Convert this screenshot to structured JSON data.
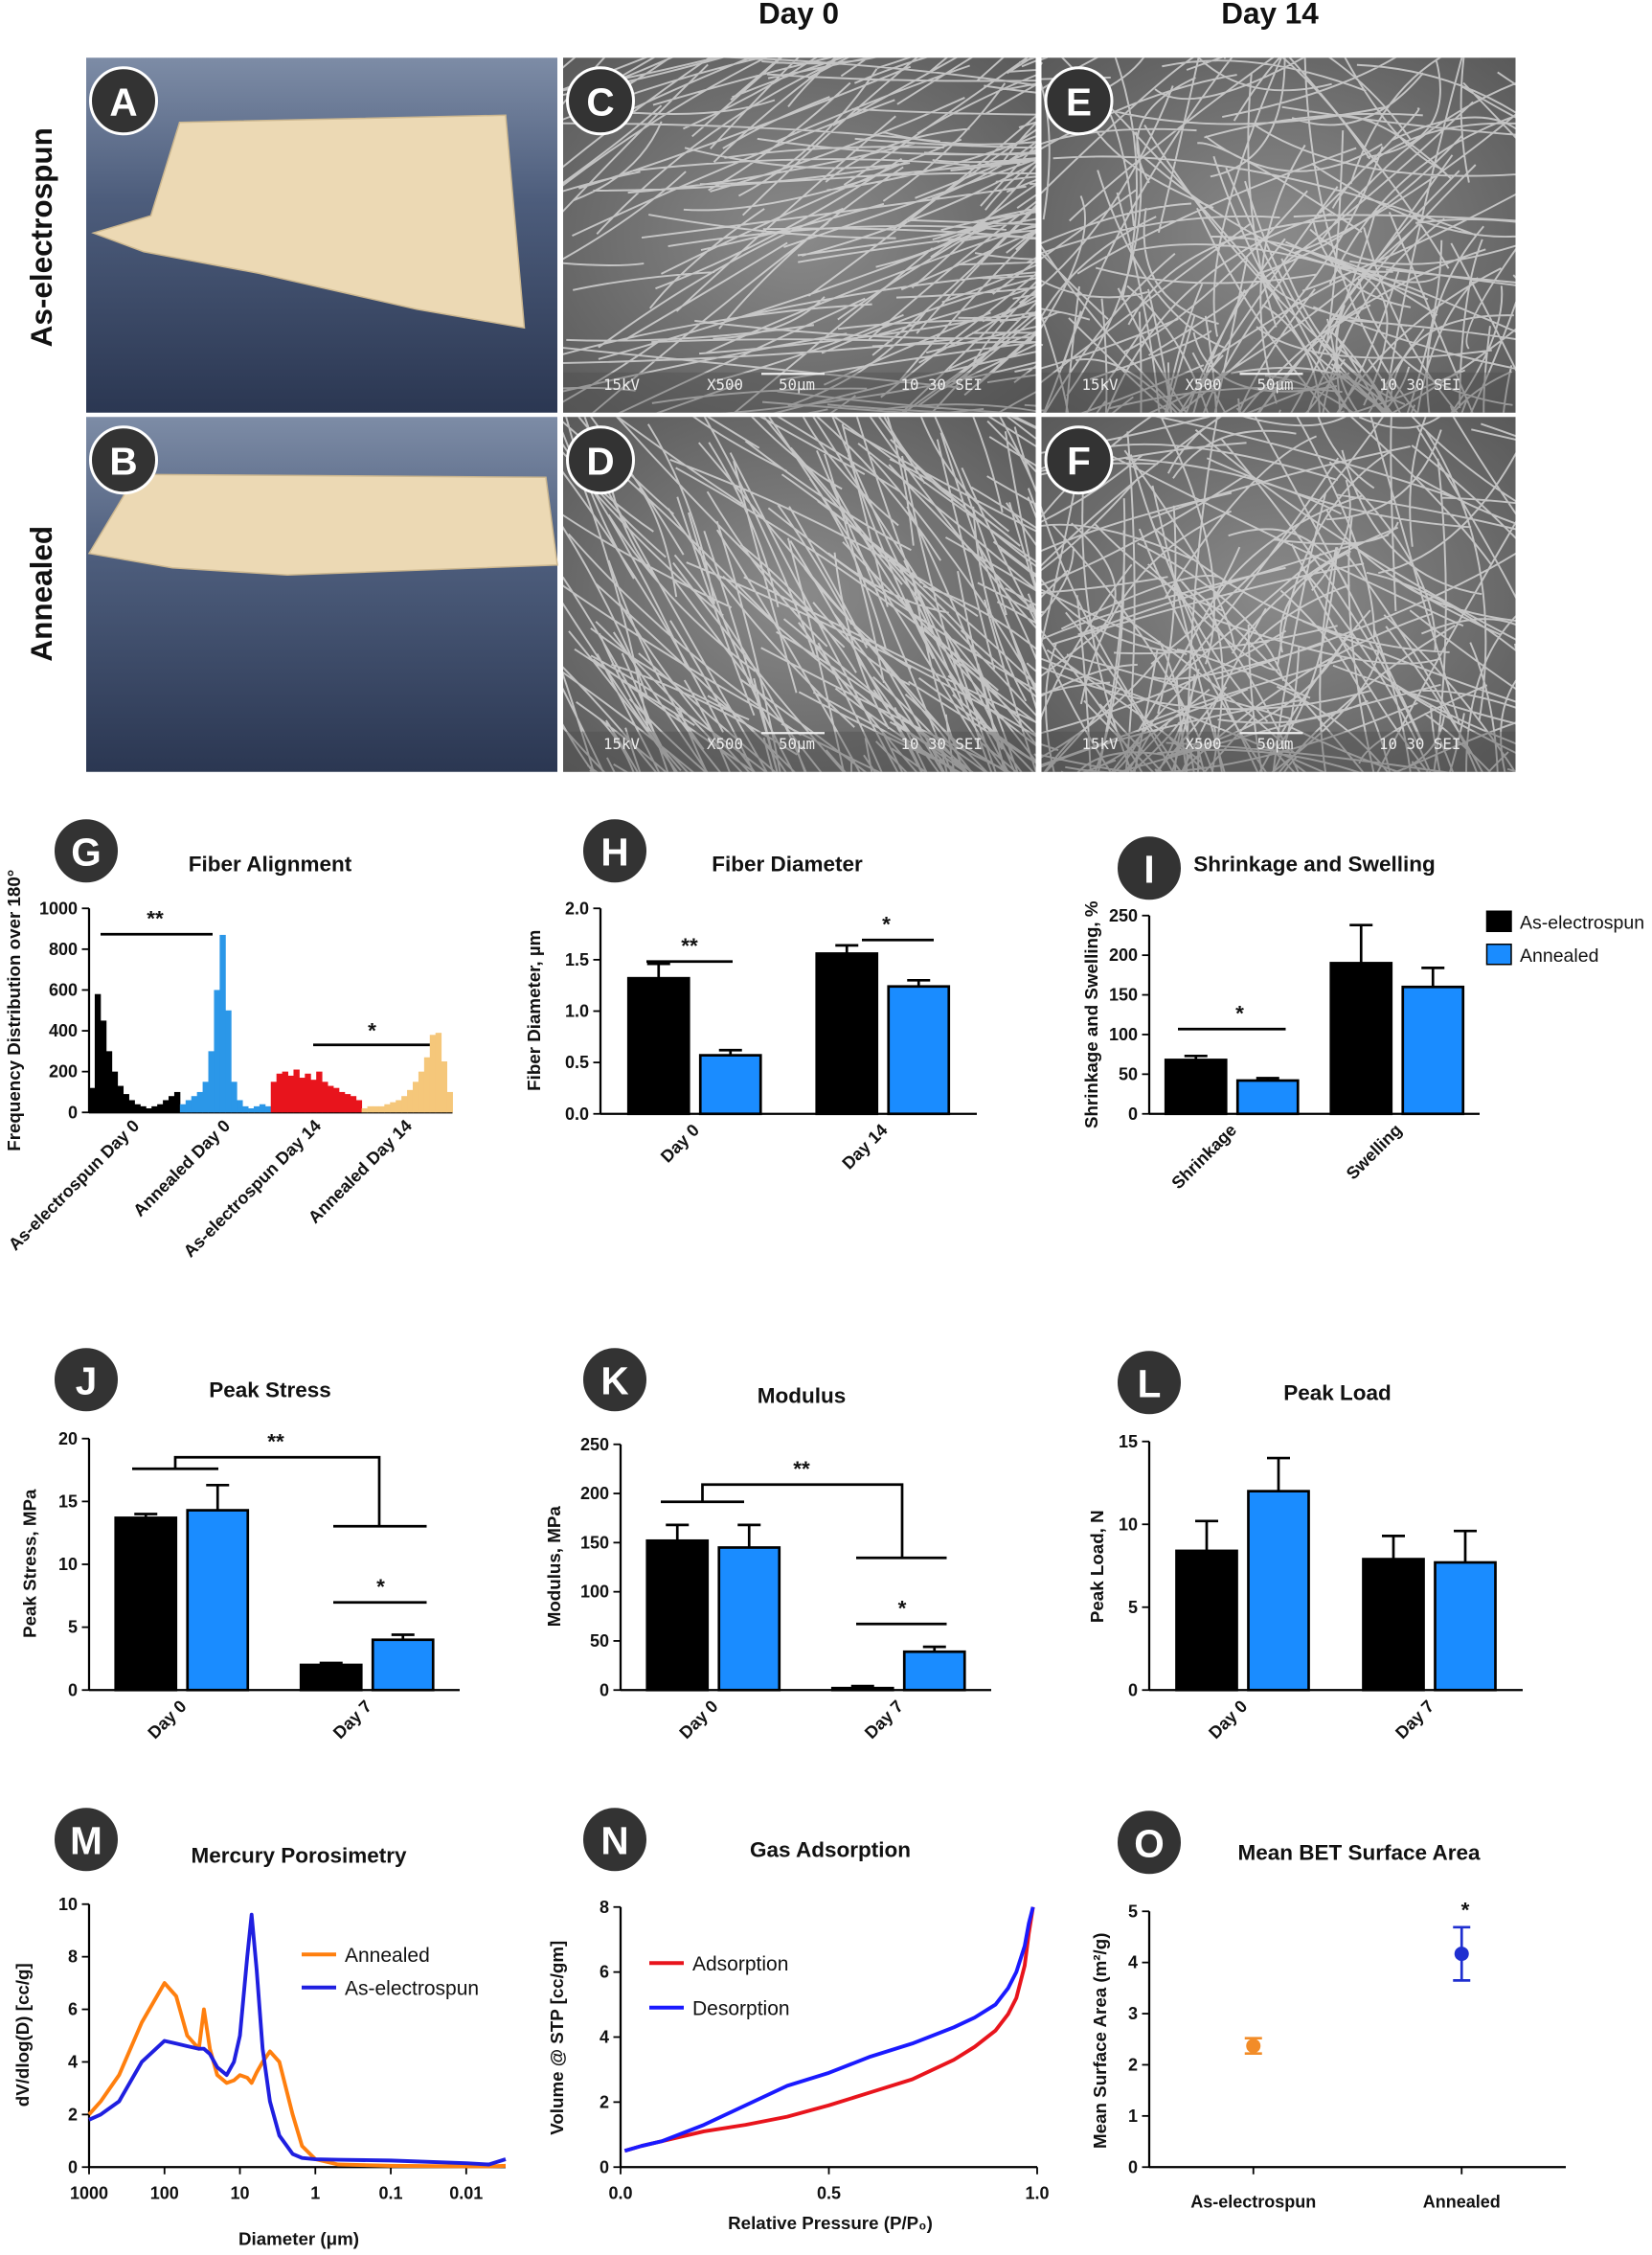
{
  "header": {
    "columns": [
      "Day 0",
      "Day 14"
    ],
    "rows": [
      "As-electrospun",
      "Annealed"
    ]
  },
  "photos": [
    {
      "panel": "A"
    },
    {
      "panel": "B"
    },
    {
      "panel": "C",
      "sem": [
        "15kV",
        "X500",
        "50μm",
        "10 30 SEI"
      ]
    },
    {
      "panel": "D",
      "sem": [
        "15kV",
        "X500",
        "50μm",
        "10 30 SEI"
      ]
    },
    {
      "panel": "E",
      "sem": [
        "15kV",
        "X500",
        "50μm",
        "10 30 SEI"
      ]
    },
    {
      "panel": "F",
      "sem": [
        "15kV",
        "X500",
        "50μm",
        "10 30 SEI"
      ]
    }
  ],
  "chart_data": [
    {
      "type": "histogram_groups",
      "panel": "G",
      "title": "Fiber Alignment",
      "y_label": "Frequency Distribution over 180°",
      "ylim": [
        0,
        1000
      ],
      "yticks": [
        0,
        200,
        400,
        600,
        800,
        1000
      ],
      "series": [
        {
          "name": "As-electrospun Day 0",
          "color": "#000000",
          "values": [
            120,
            580,
            450,
            300,
            200,
            130,
            90,
            60,
            40,
            30,
            20,
            30,
            40,
            60,
            80,
            100
          ]
        },
        {
          "name": "Annealed Day 0",
          "color": "#2b97e8",
          "values": [
            40,
            60,
            80,
            100,
            150,
            300,
            600,
            870,
            500,
            150,
            60,
            30,
            20,
            30,
            40,
            30
          ]
        },
        {
          "name": "As-electrospun Day 14",
          "color": "#e8141c",
          "values": [
            150,
            190,
            200,
            180,
            210,
            170,
            190,
            160,
            200,
            150,
            130,
            120,
            100,
            90,
            80,
            60
          ]
        },
        {
          "name": "Annealed Day 14",
          "color": "#f5c77a",
          "values": [
            20,
            30,
            30,
            30,
            40,
            50,
            60,
            80,
            110,
            150,
            200,
            270,
            380,
            390,
            250,
            100
          ]
        }
      ],
      "annotations": [
        "**",
        "*"
      ]
    },
    {
      "type": "bar",
      "panel": "H",
      "title": "Fiber Diameter",
      "y_label": "Fiber Diameter, µm",
      "categories": [
        "Day 0",
        "Day 14"
      ],
      "ylim": [
        0,
        2
      ],
      "yticks": [
        {
          "value": 0,
          "label": "0.0"
        },
        0.5,
        {
          "value": 1,
          "label": "1.0"
        },
        1.5,
        {
          "value": 2,
          "label": "2.0"
        }
      ],
      "series": [
        {
          "name": "As-electrospun",
          "color": "#000000",
          "values": [
            1.32,
            1.56
          ],
          "errors": [
            0.14,
            0.08
          ]
        },
        {
          "name": "Annealed",
          "color": "#1a8cff",
          "values": [
            0.57,
            1.24
          ],
          "errors": [
            0.05,
            0.06
          ]
        }
      ],
      "annotations": [
        "**",
        "*"
      ],
      "legend": false
    },
    {
      "type": "bar",
      "panel": "I",
      "title": "Shrinkage and Swelling",
      "y_label": "Shrinkage and Swelling, %",
      "categories": [
        "Shrinkage",
        "Swelling"
      ],
      "ylim": [
        0,
        250
      ],
      "yticks": [
        0,
        50,
        100,
        150,
        200,
        250
      ],
      "series": [
        {
          "name": "As-electrospun",
          "color": "#000000",
          "values": [
            68,
            190
          ],
          "errors": [
            5,
            48
          ]
        },
        {
          "name": "Annealed",
          "color": "#1a8cff",
          "values": [
            42,
            160
          ],
          "errors": [
            3,
            24
          ]
        }
      ],
      "annotations": [
        "*"
      ],
      "legend": true
    },
    {
      "type": "bar",
      "panel": "J",
      "title": "Peak Stress",
      "y_label": "Peak Stress, MPa",
      "categories": [
        "Day 0",
        "Day 7"
      ],
      "ylim": [
        0,
        20
      ],
      "yticks": [
        0,
        5,
        10,
        15,
        20
      ],
      "series": [
        {
          "name": "As-electrospun",
          "color": "#000000",
          "values": [
            13.7,
            2.0
          ],
          "errors": [
            0.3,
            0.15
          ]
        },
        {
          "name": "Annealed",
          "color": "#1a8cff",
          "values": [
            14.3,
            4.0
          ],
          "errors": [
            2.0,
            0.4
          ]
        }
      ],
      "annotations": [
        "**",
        "*"
      ],
      "legend": false
    },
    {
      "type": "bar",
      "panel": "K",
      "title": "Modulus",
      "y_label": "Modulus, MPa",
      "categories": [
        "Day 0",
        "Day 7"
      ],
      "ylim": [
        0,
        250
      ],
      "yticks": [
        0,
        50,
        100,
        150,
        200,
        250
      ],
      "series": [
        {
          "name": "As-electrospun",
          "color": "#000000",
          "values": [
            152,
            2
          ],
          "errors": [
            16,
            2
          ]
        },
        {
          "name": "Annealed",
          "color": "#1a8cff",
          "values": [
            145,
            39
          ],
          "errors": [
            23,
            5
          ]
        }
      ],
      "annotations": [
        "**",
        "*"
      ],
      "legend": false
    },
    {
      "type": "bar",
      "panel": "L",
      "title": "Peak Load",
      "y_label": "Peak Load, N",
      "categories": [
        "Day 0",
        "Day 7"
      ],
      "ylim": [
        0,
        15
      ],
      "yticks": [
        0,
        5,
        10,
        15
      ],
      "series": [
        {
          "name": "As-electrospun",
          "color": "#000000",
          "values": [
            8.4,
            7.9
          ],
          "errors": [
            1.8,
            1.4
          ]
        },
        {
          "name": "Annealed",
          "color": "#1a8cff",
          "values": [
            12.0,
            7.7
          ],
          "errors": [
            2.0,
            1.9
          ]
        }
      ],
      "legend": false
    },
    {
      "type": "line",
      "panel": "M",
      "title": "Mercury Porosimetry",
      "y_label": "dV/dlog(D) [cc/g]",
      "x_label": "Diameter (μm)",
      "xscale": "log",
      "xlim": [
        1000,
        0.003
      ],
      "xticks": [
        1000,
        100,
        10,
        1,
        0.1,
        0.01
      ],
      "ylim": [
        0,
        10
      ],
      "yticks": [
        0,
        2,
        4,
        6,
        8,
        10
      ],
      "x": [
        1000,
        700,
        400,
        200,
        100,
        70,
        50,
        35,
        30,
        25,
        20,
        15,
        12,
        10,
        8,
        7,
        6,
        5,
        4,
        3,
        2,
        1.5,
        1,
        0.5,
        0.1,
        0.01,
        0.005,
        0.003
      ],
      "series": [
        {
          "name": "Annealed",
          "color": "#ff7f0e",
          "values": [
            2.0,
            2.5,
            3.5,
            5.5,
            7.0,
            6.5,
            5.0,
            4.5,
            6.0,
            4.5,
            3.5,
            3.2,
            3.3,
            3.5,
            3.4,
            3.2,
            3.6,
            4.0,
            4.4,
            4.0,
            2.0,
            0.8,
            0.3,
            0.1,
            0.05,
            0.03,
            0.03,
            0.05
          ]
        },
        {
          "name": "As-electrospun",
          "color": "#1f1fe0",
          "values": [
            1.8,
            2.0,
            2.5,
            4.0,
            4.8,
            4.7,
            4.6,
            4.5,
            4.5,
            4.3,
            3.8,
            3.5,
            4.0,
            5.0,
            8.0,
            9.6,
            7.5,
            4.5,
            2.5,
            1.2,
            0.5,
            0.35,
            0.3,
            0.28,
            0.25,
            0.15,
            0.1,
            0.3
          ]
        }
      ]
    },
    {
      "type": "line",
      "panel": "N",
      "title": "Gas Adsorption",
      "y_label": "Volume @ STP [cc/gm]",
      "x_label": "Relative Pressure (P/P₀)",
      "xlim": [
        0,
        1
      ],
      "xticks": [
        {
          "value": 0,
          "label": "0.0"
        },
        0.5,
        {
          "value": 1,
          "label": "1.0"
        }
      ],
      "ylim": [
        0,
        8
      ],
      "yticks": [
        0,
        2,
        4,
        6,
        8
      ],
      "x": [
        0.01,
        0.05,
        0.1,
        0.2,
        0.3,
        0.4,
        0.5,
        0.6,
        0.7,
        0.8,
        0.85,
        0.9,
        0.93,
        0.95,
        0.97,
        0.98,
        0.99
      ],
      "series": [
        {
          "name": "Adsorption",
          "color": "#e8141c",
          "values": [
            0.5,
            0.65,
            0.8,
            1.1,
            1.3,
            1.55,
            1.9,
            2.3,
            2.7,
            3.3,
            3.7,
            4.2,
            4.7,
            5.2,
            6.2,
            7.2,
            8.0
          ]
        },
        {
          "name": "Desorption",
          "color": "#1a1aff",
          "values": [
            0.5,
            0.65,
            0.8,
            1.3,
            1.9,
            2.5,
            2.9,
            3.4,
            3.8,
            4.3,
            4.6,
            5.0,
            5.5,
            6.0,
            6.8,
            7.5,
            8.0
          ]
        }
      ]
    },
    {
      "type": "dot",
      "panel": "O",
      "title": "Mean BET Surface Area",
      "y_label": "Mean Surface Area (m²/g)",
      "categories": [
        "As-electrospun",
        "Annealed"
      ],
      "ylim": [
        0,
        5
      ],
      "yticks": [
        0,
        1,
        2,
        3,
        4,
        5
      ],
      "values": [
        2.37,
        4.17
      ],
      "errors": [
        0.15,
        0.52
      ],
      "colors": [
        "#f28c28",
        "#1f2fd0"
      ],
      "annotations": [
        "*"
      ]
    }
  ]
}
